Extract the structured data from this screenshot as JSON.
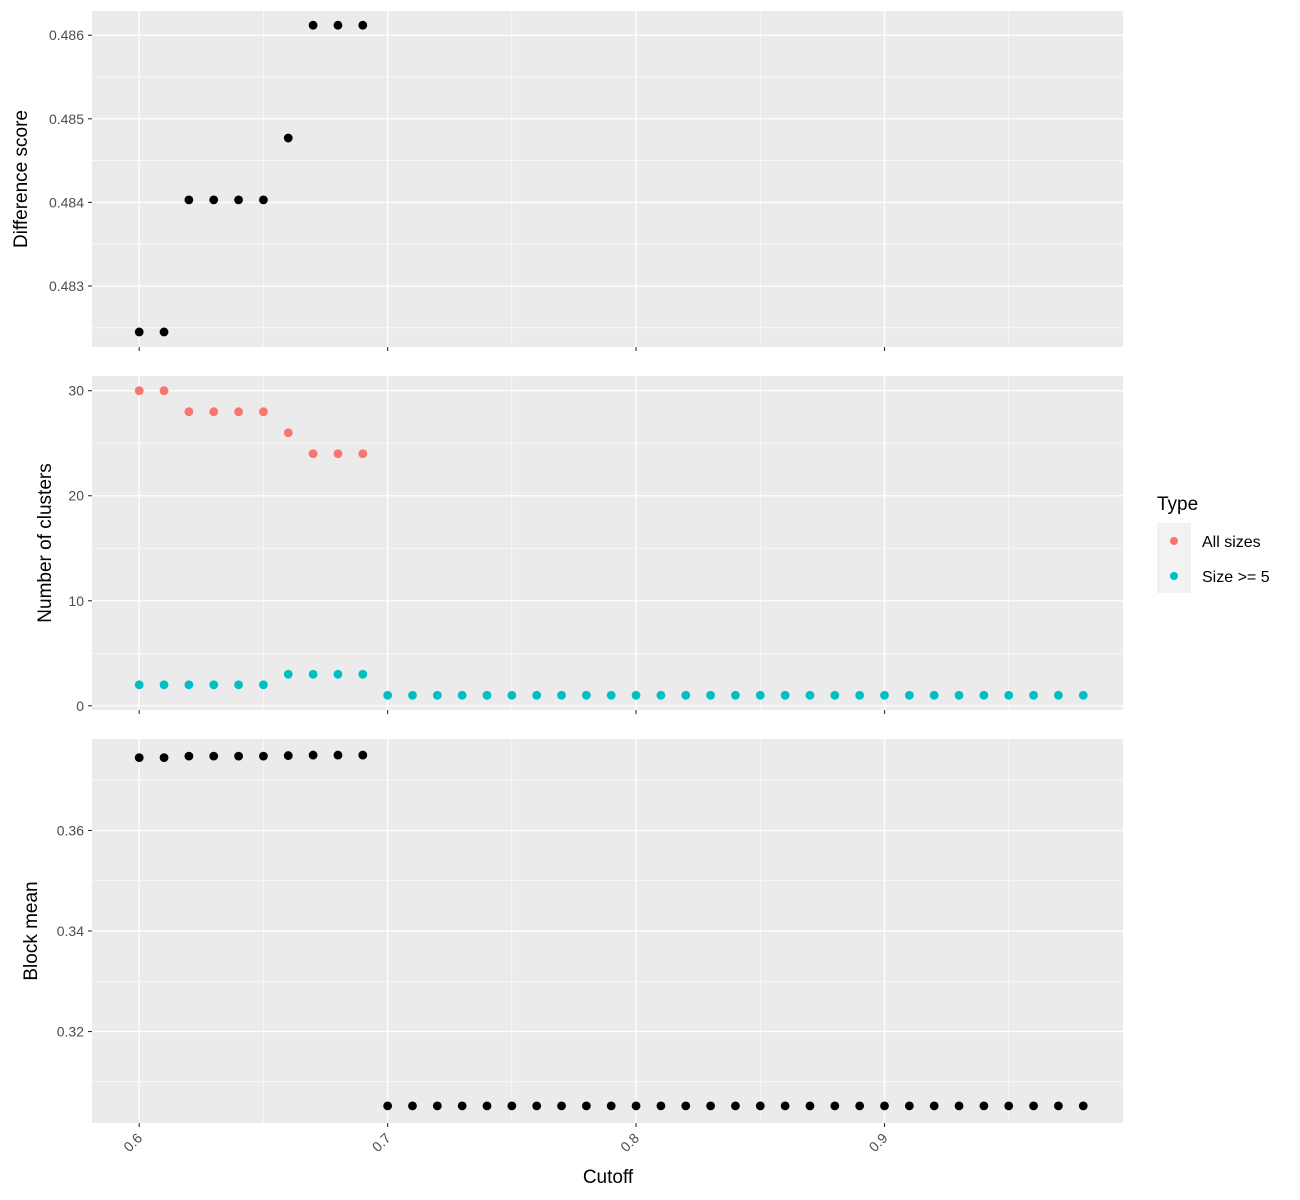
{
  "chart_data": {
    "type": "scatter",
    "x_label": "Cutoff",
    "x_range": [
      0.581,
      0.996
    ],
    "x_ticks": [
      0.6,
      0.7,
      0.8,
      0.9
    ],
    "x_tick_labels": [
      "0.6",
      "0.7",
      "0.8",
      "0.9"
    ],
    "panels": [
      {
        "id": "difference",
        "ylabel": "Difference score",
        "ylim": [
          0.48227,
          0.48629
        ],
        "y_ticks": [
          0.483,
          0.484,
          0.485,
          0.486
        ],
        "y_tick_labels": [
          "0.483",
          "0.484",
          "0.485",
          "0.486"
        ],
        "series": [
          {
            "color": "#000000",
            "x": [
              0.6,
              0.61,
              0.62,
              0.63,
              0.64,
              0.65,
              0.66,
              0.67,
              0.68,
              0.69
            ],
            "y": [
              0.48245,
              0.48245,
              0.48403,
              0.48403,
              0.48403,
              0.48403,
              0.48477,
              0.48612,
              0.48612,
              0.48612
            ]
          }
        ]
      },
      {
        "id": "clusters",
        "ylabel": "Number of clusters",
        "ylim": [
          -0.4,
          31.4
        ],
        "y_ticks": [
          0,
          10,
          20,
          30
        ],
        "y_tick_labels": [
          "0",
          "10",
          "20",
          "30"
        ],
        "series": [
          {
            "name": "All sizes",
            "color": "#F8766D",
            "x": [
              0.6,
              0.61,
              0.62,
              0.63,
              0.64,
              0.65,
              0.66,
              0.67,
              0.68,
              0.69
            ],
            "y": [
              30,
              30,
              28,
              28,
              28,
              28,
              26,
              24,
              24,
              24
            ]
          },
          {
            "name": "Size >= 5",
            "color": "#00BFC4",
            "x": [
              0.6,
              0.61,
              0.62,
              0.63,
              0.64,
              0.65,
              0.66,
              0.67,
              0.68,
              0.69,
              0.7,
              0.71,
              0.72,
              0.73,
              0.74,
              0.75,
              0.76,
              0.77,
              0.78,
              0.79,
              0.8,
              0.81,
              0.82,
              0.83,
              0.84,
              0.85,
              0.86,
              0.87,
              0.88,
              0.89,
              0.9,
              0.91,
              0.92,
              0.93,
              0.94,
              0.95,
              0.96,
              0.97,
              0.98
            ],
            "y": [
              2,
              2,
              2,
              2,
              2,
              2,
              3,
              3,
              3,
              3,
              1,
              1,
              1,
              1,
              1,
              1,
              1,
              1,
              1,
              1,
              1,
              1,
              1,
              1,
              1,
              1,
              1,
              1,
              1,
              1,
              1,
              1,
              1,
              1,
              1,
              1,
              1,
              1,
              1
            ]
          }
        ]
      },
      {
        "id": "blockmean",
        "ylabel": "Block mean",
        "ylim": [
          0.3018,
          0.3782
        ],
        "y_ticks": [
          0.32,
          0.34,
          0.36
        ],
        "y_tick_labels": [
          "0.32",
          "0.34",
          "0.36"
        ],
        "series": [
          {
            "color": "#000000",
            "x": [
              0.6,
              0.61,
              0.62,
              0.63,
              0.64,
              0.65,
              0.66,
              0.67,
              0.68,
              0.69,
              0.7,
              0.71,
              0.72,
              0.73,
              0.74,
              0.75,
              0.76,
              0.77,
              0.78,
              0.79,
              0.8,
              0.81,
              0.82,
              0.83,
              0.84,
              0.85,
              0.86,
              0.87,
              0.88,
              0.89,
              0.9,
              0.91,
              0.92,
              0.93,
              0.94,
              0.95,
              0.96,
              0.97,
              0.98
            ],
            "y": [
              0.3745,
              0.3745,
              0.3748,
              0.3748,
              0.3748,
              0.3748,
              0.3749,
              0.375,
              0.375,
              0.375,
              0.3052,
              0.3052,
              0.3052,
              0.3052,
              0.3052,
              0.3052,
              0.3052,
              0.3052,
              0.3052,
              0.3052,
              0.3052,
              0.3052,
              0.3052,
              0.3052,
              0.3052,
              0.3052,
              0.3052,
              0.3052,
              0.3052,
              0.3052,
              0.3052,
              0.3052,
              0.3052,
              0.3052,
              0.3052,
              0.3052,
              0.3052,
              0.3052,
              0.3052
            ]
          }
        ]
      }
    ],
    "legend": {
      "title": "Type",
      "position": "right",
      "entries": [
        {
          "label": "All sizes",
          "color": "#F8766D"
        },
        {
          "label": "Size >= 5",
          "color": "#00BFC4"
        }
      ]
    },
    "grid": true,
    "panel_background": "#EBEBEB"
  }
}
